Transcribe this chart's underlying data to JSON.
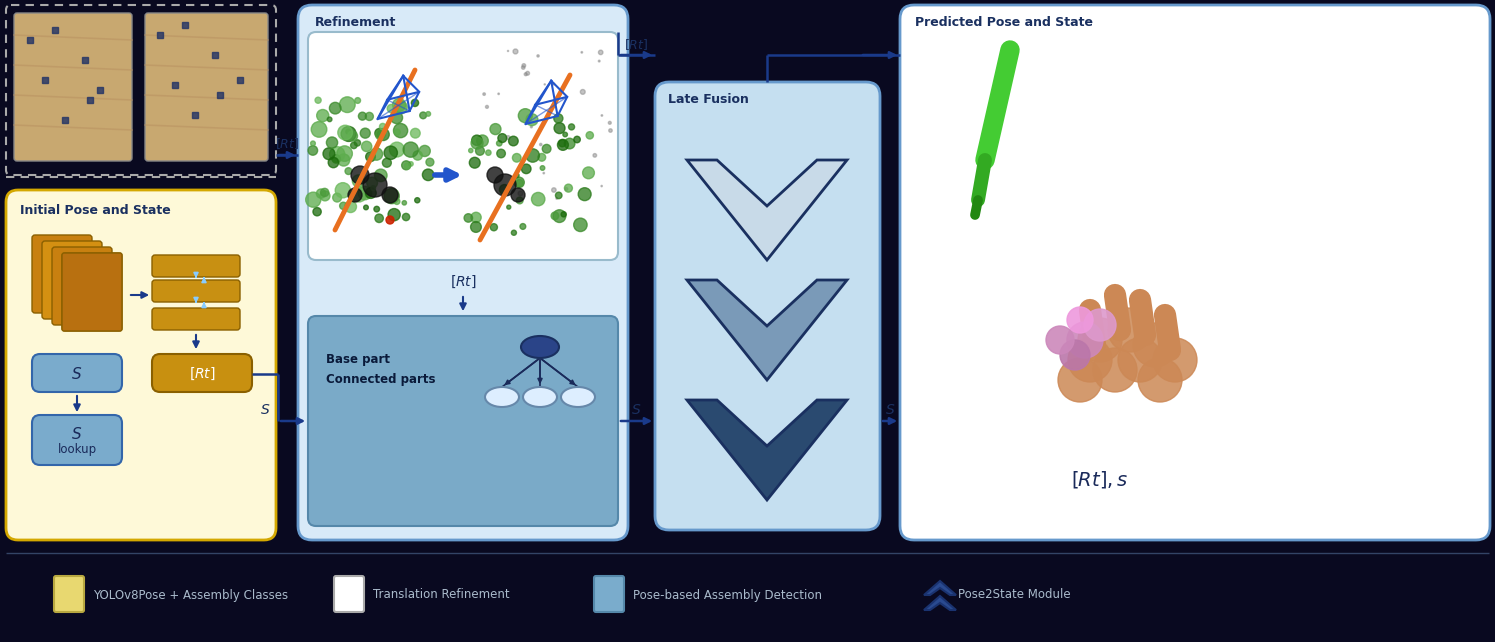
{
  "fig_width": 14.95,
  "fig_height": 6.42,
  "bg_color": "#090920",
  "panel_colors": {
    "yellow_panel": "#fef9d8",
    "yellow_border": "#d4a800",
    "refinement_panel": "#d8eaf8",
    "refinement_border": "#6699cc",
    "late_fusion_panel": "#c5dff0",
    "late_fusion_border": "#6699cc",
    "predicted_panel": "#ffffff",
    "predicted_border": "#6699cc",
    "refine_top_sub": "#ffffff",
    "refine_top_sub_border": "#99bbcc",
    "refine_bot_sub": "#7aaac8",
    "refine_bot_sub_border": "#5588aa"
  },
  "box_colors": {
    "blue_box": "#7aabcc",
    "gold_box": "#c89010",
    "dark_blue_box": "#4477aa"
  },
  "arrow_color": "#1a3a8a",
  "title_color": "#1a3060",
  "label_color": "#1a3060",
  "chevron_colors": [
    "#c8dae8",
    "#7a9ab8",
    "#2a4a70"
  ],
  "chevron_border": "#1a3060",
  "legend_items": [
    {
      "color": "#e8d870",
      "border": "#b8a840",
      "label": "YOLOv8Pose + Assembly Classes",
      "chevron": false
    },
    {
      "color": "#ffffff",
      "border": "#aaaaaa",
      "label": "Translation Refinement",
      "chevron": false
    },
    {
      "color": "#7aaccc",
      "border": "#5588aa",
      "label": "Pose-based Assembly Detection",
      "chevron": false
    },
    {
      "color": "#2a4a90",
      "border": "#1a3370",
      "label": "Pose2State Module",
      "chevron": true
    }
  ]
}
